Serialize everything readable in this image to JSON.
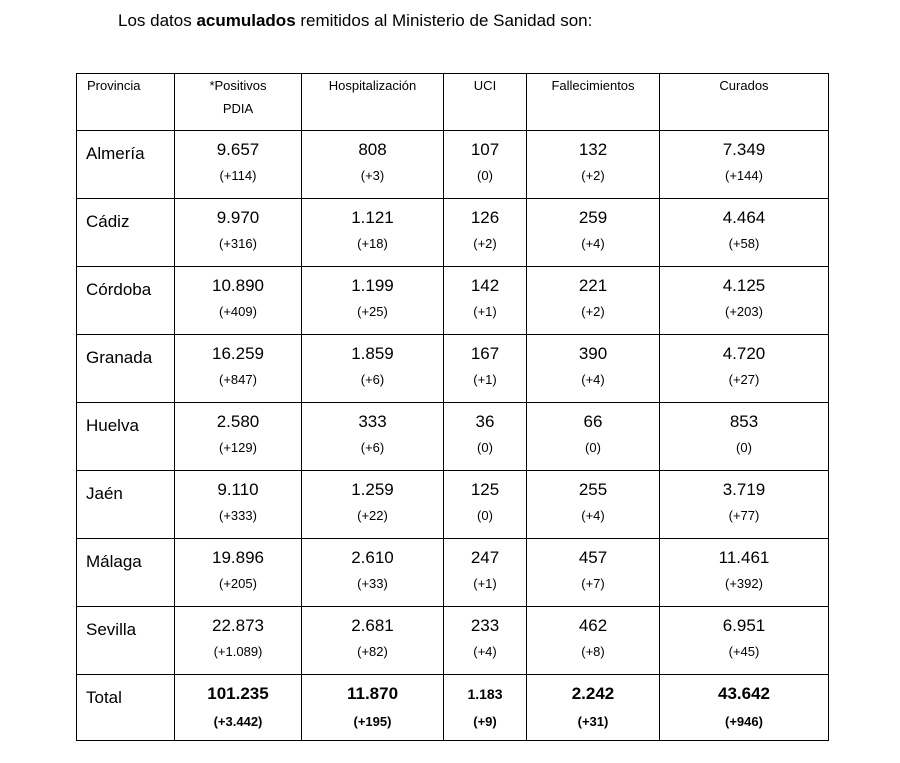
{
  "heading": {
    "pre": "Los datos ",
    "bold": "acumulados",
    "post": " remitidos al Ministerio de Sanidad son:"
  },
  "table": {
    "headers": [
      "Provincia",
      "*Positivos",
      "PDIA",
      "Hospitalización",
      "UCI",
      "Fallecimientos",
      "Curados"
    ],
    "rows": [
      {
        "name": "Almería",
        "cells": [
          [
            "9.657",
            "(+114)"
          ],
          [
            "808",
            "(+3)"
          ],
          [
            "107",
            "(0)"
          ],
          [
            "132",
            "(+2)"
          ],
          [
            "7.349",
            "(+144)"
          ]
        ]
      },
      {
        "name": "Cádiz",
        "cells": [
          [
            "9.970",
            "(+316)"
          ],
          [
            "1.121",
            "(+18)"
          ],
          [
            "126",
            "(+2)"
          ],
          [
            "259",
            "(+4)"
          ],
          [
            "4.464",
            "(+58)"
          ]
        ]
      },
      {
        "name": "Córdoba",
        "cells": [
          [
            "10.890",
            "(+409)"
          ],
          [
            "1.199",
            "(+25)"
          ],
          [
            "142",
            "(+1)"
          ],
          [
            "221",
            "(+2)"
          ],
          [
            "4.125",
            "(+203)"
          ]
        ]
      },
      {
        "name": "Granada",
        "cells": [
          [
            "16.259",
            "(+847)"
          ],
          [
            "1.859",
            "(+6)"
          ],
          [
            "167",
            "(+1)"
          ],
          [
            "390",
            "(+4)"
          ],
          [
            "4.720",
            "(+27)"
          ]
        ]
      },
      {
        "name": "Huelva",
        "cells": [
          [
            "2.580",
            "(+129)"
          ],
          [
            "333",
            "(+6)"
          ],
          [
            "36",
            "(0)"
          ],
          [
            "66",
            "(0)"
          ],
          [
            "853",
            "(0)"
          ]
        ]
      },
      {
        "name": "Jaén",
        "cells": [
          [
            "9.110",
            "(+333)"
          ],
          [
            "1.259",
            "(+22)"
          ],
          [
            "125",
            "(0)"
          ],
          [
            "255",
            "(+4)"
          ],
          [
            "3.719",
            "(+77)"
          ]
        ]
      },
      {
        "name": "Málaga",
        "cells": [
          [
            "19.896",
            "(+205)"
          ],
          [
            "2.610",
            "(+33)"
          ],
          [
            "247",
            "(+1)"
          ],
          [
            "457",
            "(+7)"
          ],
          [
            "11.461",
            "(+392)"
          ]
        ]
      },
      {
        "name": "Sevilla",
        "cells": [
          [
            "22.873",
            "(+1.089)"
          ],
          [
            "2.681",
            "(+82)"
          ],
          [
            "233",
            "(+4)"
          ],
          [
            "462",
            "(+8)"
          ],
          [
            "6.951",
            "(+45)"
          ]
        ]
      }
    ],
    "total": {
      "name": "Total",
      "cells": [
        [
          "101.235",
          "(+3.442)"
        ],
        [
          "11.870",
          "(+195)"
        ],
        [
          "1.183",
          "(+9)"
        ],
        [
          "2.242",
          "(+31)"
        ],
        [
          "43.642",
          "(+946)"
        ]
      ]
    }
  }
}
